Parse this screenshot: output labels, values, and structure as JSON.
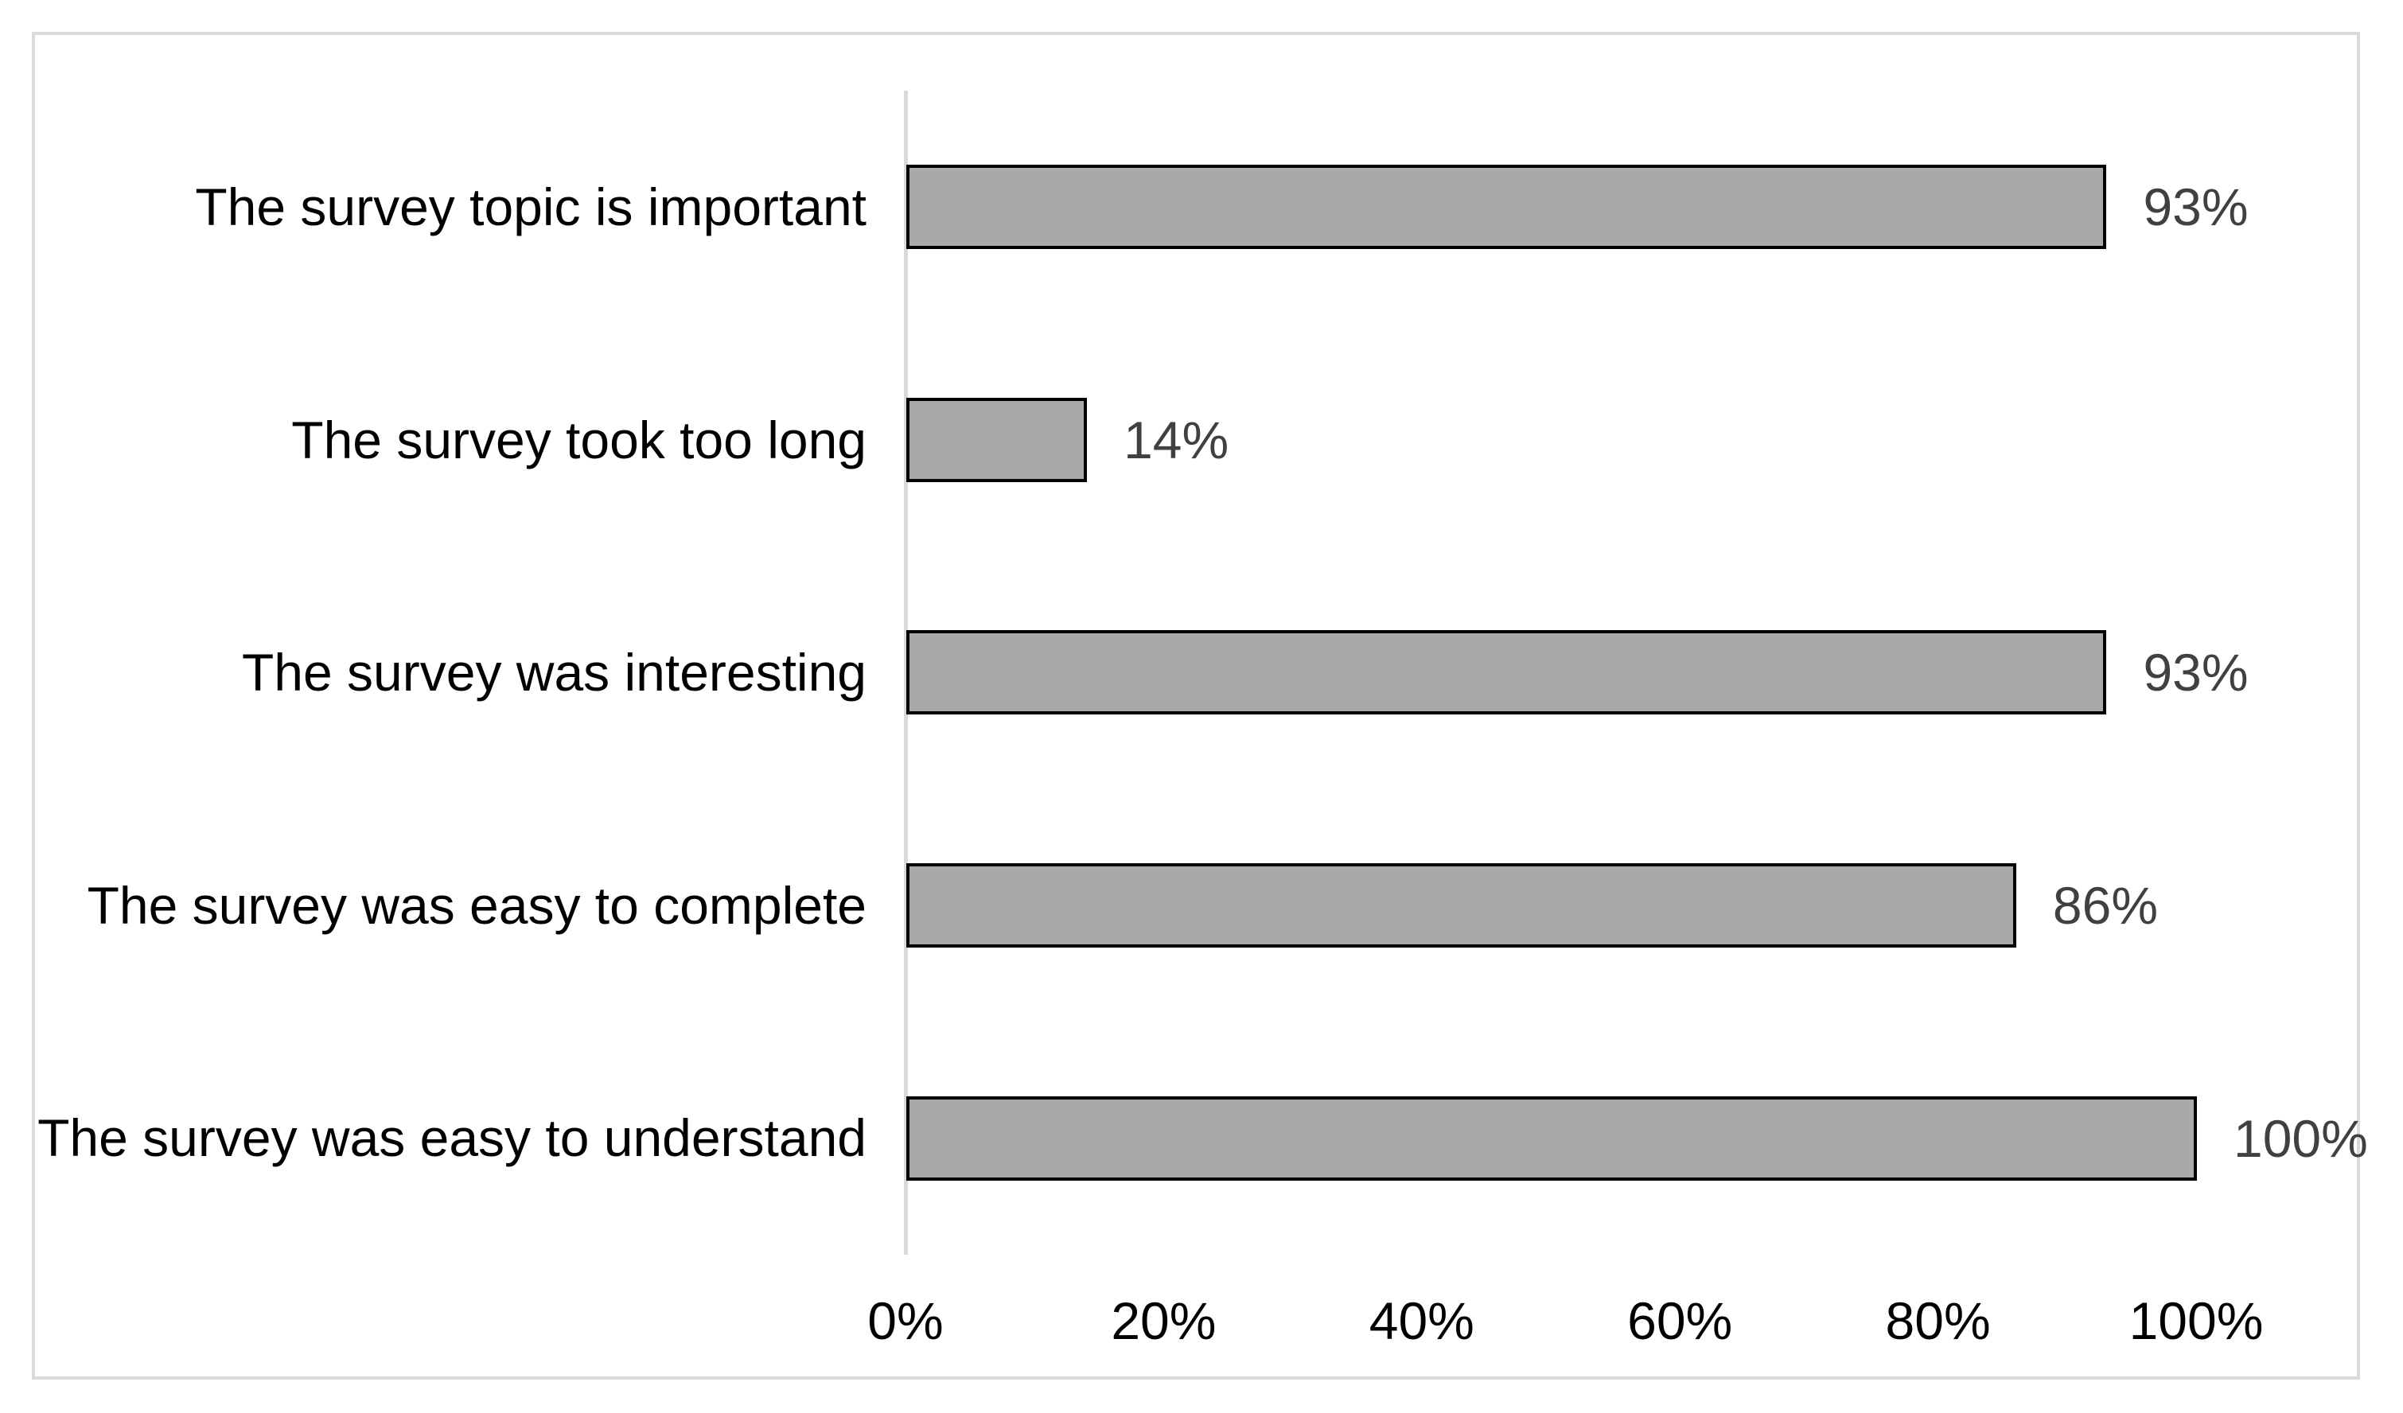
{
  "chart_data": {
    "type": "bar",
    "orientation": "horizontal",
    "categories": [
      "The survey topic is important",
      "The survey took too long",
      "The survey was interesting",
      "The survey was easy to complete",
      "The survey was easy to understand"
    ],
    "values": [
      93,
      14,
      93,
      86,
      100
    ],
    "value_labels": [
      "93%",
      "14%",
      "93%",
      "86%",
      "100%"
    ],
    "x_ticks": [
      "0%",
      "20%",
      "40%",
      "60%",
      "80%",
      "100%"
    ],
    "xlim": [
      0,
      100
    ],
    "xlabel": "",
    "ylabel": "",
    "grid": false,
    "legend": false,
    "colors": {
      "bar_fill": "#a9a9a9",
      "bar_border": "#000000",
      "value_label": "#404040",
      "category_label": "#000000",
      "tick_label": "#000000",
      "axis_line": "#d9d9d9",
      "frame_border": "#dadada"
    }
  }
}
